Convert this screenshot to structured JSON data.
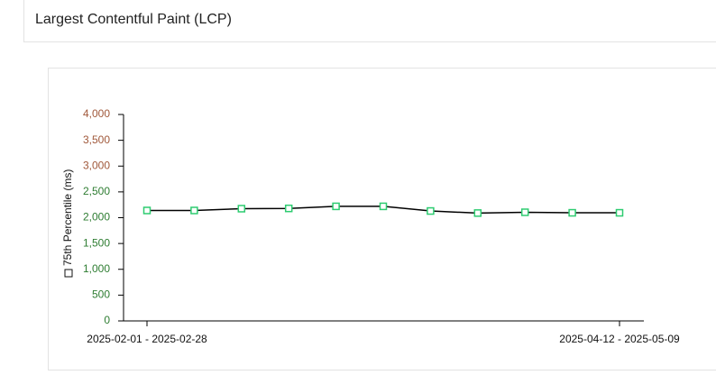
{
  "header": {
    "title": "Largest Contentful Paint (LCP)"
  },
  "chart_data": {
    "type": "line",
    "categories": [
      "2025-02-01 - 2025-02-28",
      null,
      null,
      null,
      null,
      null,
      null,
      null,
      null,
      null,
      "2025-04-12 - 2025-05-09"
    ],
    "series": [
      {
        "name": "75th Percentile (ms)",
        "color": "#000000",
        "marker_color": "#2ecc71",
        "values": [
          2140,
          2140,
          2175,
          2180,
          2220,
          2220,
          2130,
          2090,
          2105,
          2095,
          2095
        ]
      }
    ],
    "ylim": [
      0,
      4000
    ],
    "yticks": [
      0,
      500,
      {
        "value": 1000,
        "label": "1,000"
      },
      {
        "value": 1500,
        "label": "1,500"
      },
      {
        "value": 2000,
        "label": "2,000"
      },
      {
        "value": 2500,
        "label": "2,500"
      },
      {
        "value": 3000,
        "label": "3,000"
      },
      {
        "value": 3500,
        "label": "3,500"
      },
      {
        "value": 4000,
        "label": "4,000"
      }
    ],
    "ytick_colors": [
      "#2e7d32",
      "#2e7d32",
      "#2e7d32",
      "#2e7d32",
      "#2e7d32",
      "#2e7d32",
      "#a0583a",
      "#a0583a",
      "#a0583a"
    ],
    "grid": false
  }
}
